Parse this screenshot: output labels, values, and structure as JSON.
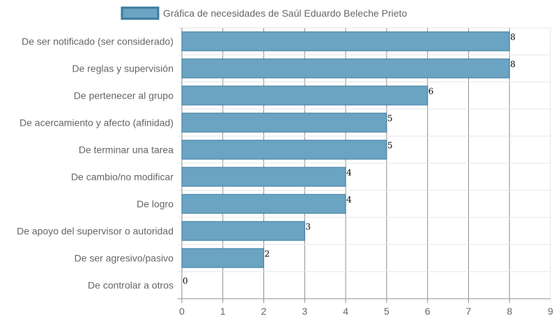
{
  "chart_data": {
    "type": "bar",
    "orientation": "horizontal",
    "categories": [
      "De ser notificado (ser considerado)",
      "De reglas y supervisión",
      "De pertenecer al grupo",
      "De acercamiento y afecto (afinidad)",
      "De terminar una tarea",
      "De cambio/no modificar",
      "De logro",
      "De apoyo del supervisor o autoridad",
      "De ser agresivo/pasivo",
      "De controlar a otros"
    ],
    "series": [
      {
        "name": "Gráfica de necesidades de Saúl Eduardo Beleche Prieto",
        "values": [
          8,
          8,
          6,
          5,
          5,
          4,
          4,
          3,
          2,
          0
        ]
      }
    ],
    "xlim": [
      0,
      9
    ],
    "xticks": [
      0,
      1,
      2,
      3,
      4,
      5,
      6,
      7,
      8,
      9
    ],
    "grid": true,
    "legend_position": "top",
    "colors": {
      "bar_fill": "#6aa4c2",
      "bar_stroke": "#3c7ba0",
      "grid": "#e5e5e5",
      "grid_strong": "#8c8c8c"
    }
  }
}
